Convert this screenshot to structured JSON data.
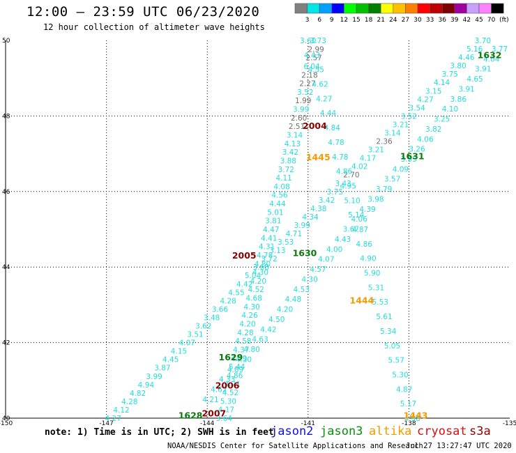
{
  "header": {
    "title": "12:00 – 23:59 UTC 06/23/2020",
    "subtitle": "12 hour collection of altimeter wave heights"
  },
  "colorbar": {
    "ticks": [
      "3",
      "6",
      "9",
      "12",
      "15",
      "18",
      "21",
      "24",
      "27",
      "30",
      "33",
      "36",
      "39",
      "42",
      "45",
      "70"
    ],
    "unit": "(ft)",
    "colors": [
      "#808080",
      "#00e5e5",
      "#00a0ff",
      "#0000ff",
      "#00ff00",
      "#00c000",
      "#008000",
      "#ffff00",
      "#ffc000",
      "#ff8000",
      "#ff0000",
      "#c00000",
      "#800000",
      "#a000a0",
      "#c8a0ff",
      "#ff80ff",
      "#000000"
    ]
  },
  "footer": {
    "note": "note: 1) Time is in UTC; 2) SWH is in feet",
    "missions": [
      {
        "name": "jason2",
        "color": "#1010e0"
      },
      {
        "name": "jason3",
        "color": "#0a8f0a"
      },
      {
        "name": "altika",
        "color": "#f59a00"
      },
      {
        "name": "cryosat",
        "color": "#d81010"
      },
      {
        "name": "s3a",
        "color": "#900000"
      }
    ],
    "credit": "NOAA/NESDIS Center for Satellite Applications and Research",
    "timestamp": "Jul 27 13:27:47 UTC 2020"
  },
  "chart_data": {
    "type": "scatter",
    "title": "12:00 – 23:59 UTC 06/23/2020",
    "subtitle": "12 hour collection of altimeter wave heights",
    "xlim": [
      -150,
      -135
    ],
    "ylim": [
      40,
      50
    ],
    "x_ticks": [
      "-150",
      "-147",
      "-144",
      "-141",
      "-138",
      "-135"
    ],
    "y_ticks": [
      "50",
      "48",
      "46",
      "44",
      "42",
      "40"
    ],
    "grid": true,
    "value_units": "ft",
    "tracks": [
      {
        "name": "cyan-track-NE",
        "color": "#22dddd",
        "start": [
          -146.8,
          40.0
        ],
        "end": [
          -135.8,
          50.0
        ],
        "values": [
          "4.27",
          "4.12",
          "4.28",
          "4.82",
          "4.94",
          "3.99",
          "3.87",
          "4.45",
          "4.15",
          "4.07",
          "3.51",
          "3.62",
          "3.48",
          "3.66",
          "4.28",
          "4.55",
          "4.42",
          "5.04",
          "3.68",
          "3.72",
          "3.13",
          "3.53",
          "4.71",
          "3.99",
          "4.34",
          "4.38",
          "3.42",
          "3.75",
          "3.43",
          "2.70",
          "4.02",
          "4.17",
          "3.21",
          "2.36",
          "3.14",
          "3.21",
          "3.52",
          "3.54",
          "4.27",
          "3.15",
          "4.14",
          "3.75",
          "3.80",
          "4.46",
          "5.16",
          "3.70"
        ]
      },
      {
        "name": "cyan-track-NW",
        "color": "#22dddd",
        "start": [
          -143.5,
          40.0
        ],
        "end": [
          -140.7,
          50.0
        ],
        "values": [
          "3.64",
          "4.17",
          "5.30",
          "4.52",
          "4.21",
          "4.86",
          "5.44",
          "4.29",
          "4.37",
          "4.58",
          "4.28",
          "4.20",
          "4.26",
          "4.30",
          "4.68",
          "4.52",
          "4.20",
          "4.30",
          "4.80",
          "4.78",
          "4.31",
          "4.41",
          "4.47",
          "3.81",
          "5.01",
          "4.44",
          "4.56",
          "4.08",
          "4.11",
          "3.72",
          "3.88",
          "3.42",
          "4.13",
          "3.14",
          "2.51",
          "2.60",
          "3.99",
          "1.99",
          "3.52",
          "2.27",
          "2.18",
          "6.04",
          "2.57",
          "2.99",
          "3.73"
        ]
      },
      {
        "name": "cyan-track-SE",
        "color": "#22dddd",
        "start": [
          -141.0,
          50.0
        ],
        "end": [
          -137.9,
          40.0
        ],
        "values": [
          "3.60",
          "4.43",
          "4.55",
          "4.62",
          "4.27",
          "4.44",
          "4.84",
          "4.78",
          "4.78",
          "4.86",
          "4.95",
          "5.10",
          "5.14",
          "4.87",
          "4.86",
          "4.90",
          "5.90",
          "5.31",
          "5.53",
          "5.61",
          "5.34",
          "5.05",
          "5.57",
          "5.30",
          "4.87",
          "5.17",
          "4.98"
        ]
      }
    ],
    "crossing_values": [
      "4.21",
      "4.62",
      "4.33",
      "4.89",
      "4.30",
      "4.80",
      "4.63",
      "4.42",
      "4.50",
      "4.20",
      "4.48",
      "4.53",
      "4.30",
      "4.57",
      "4.07",
      "4.00",
      "4.43",
      "3.67",
      "4.06",
      "4.39",
      "3.98",
      "3.79",
      "3.57",
      "4.09",
      "3.95",
      "3.26",
      "4.06",
      "3.82",
      "3.25",
      "4.10",
      "3.86",
      "3.91",
      "4.65",
      "3.91",
      "4.04",
      "3.77"
    ],
    "gray_values": [
      "2.99",
      "2.57",
      "2.18",
      "2.27",
      "1.99",
      "2.60",
      "2.51",
      "2.36",
      "2.70"
    ],
    "pass_labels": [
      {
        "text": "1632",
        "lon": -135.6,
        "lat": 49.62,
        "color": "#0a7a0a"
      },
      {
        "text": "2004",
        "lon": -140.8,
        "lat": 47.75,
        "color": "#8b0000"
      },
      {
        "text": "1445",
        "lon": -140.7,
        "lat": 46.92,
        "color": "#f59a00"
      },
      {
        "text": "1631",
        "lon": -137.9,
        "lat": 46.95,
        "color": "#0a7a0a"
      },
      {
        "text": "2005",
        "lon": -142.9,
        "lat": 44.32,
        "color": "#8b0000"
      },
      {
        "text": "1630",
        "lon": -141.1,
        "lat": 44.38,
        "color": "#0a7a0a"
      },
      {
        "text": "1444",
        "lon": -139.4,
        "lat": 43.13,
        "color": "#f59a00"
      },
      {
        "text": "1629",
        "lon": -143.3,
        "lat": 41.62,
        "color": "#0a7a0a"
      },
      {
        "text": "2006",
        "lon": -143.4,
        "lat": 40.88,
        "color": "#8b0000"
      },
      {
        "text": "1628",
        "lon": -144.5,
        "lat": 40.08,
        "color": "#0a7a0a"
      },
      {
        "text": "2007",
        "lon": -143.8,
        "lat": 40.14,
        "color": "#8b0000"
      },
      {
        "text": "1443",
        "lon": -137.8,
        "lat": 40.08,
        "color": "#f59a00"
      }
    ]
  }
}
